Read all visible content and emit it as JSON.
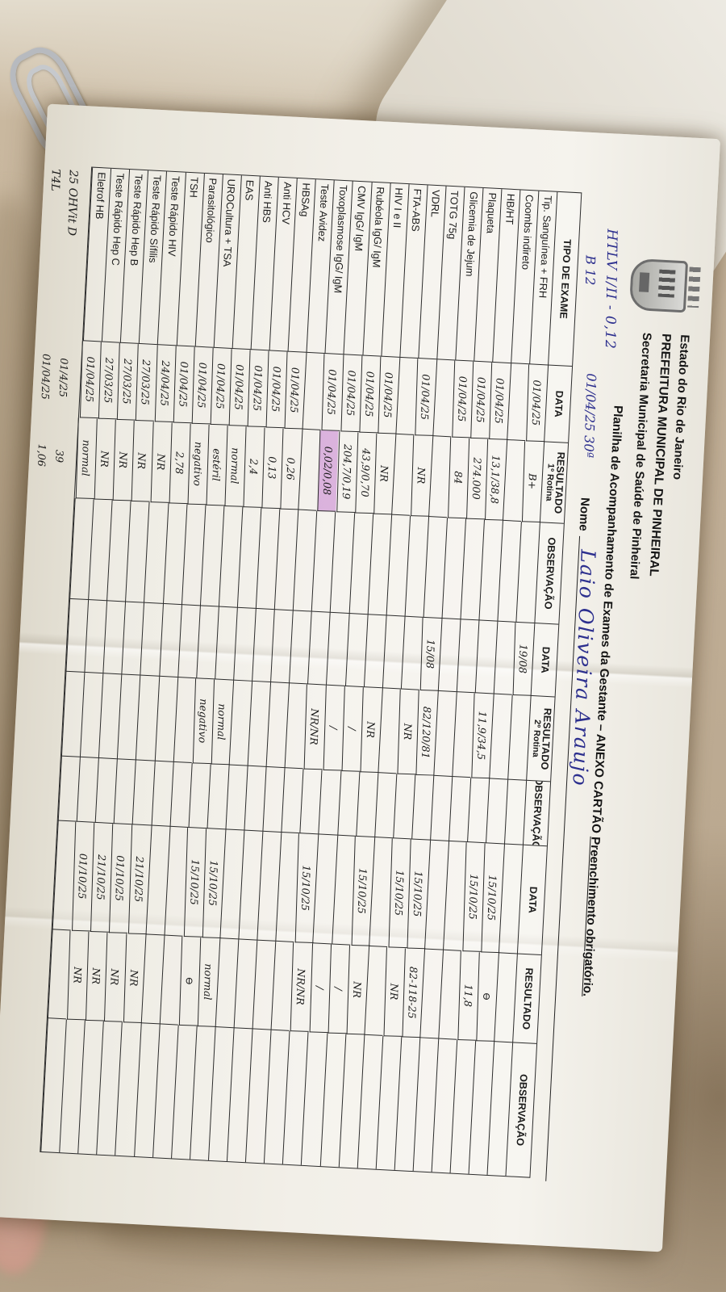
{
  "org": {
    "line1": "Estado do Rio de Janeiro",
    "line2": "PREFEITURA MUNICIPAL DE PINHEIRAL",
    "line3": "Secretaria Municipal de Saúde de Pinheiral"
  },
  "title": {
    "main": "Planilha de Acompanhamento de Exames da Gestante – ANEXO CARTÃO ",
    "underlined": "Preenchimento obrigatório."
  },
  "nome": {
    "label": "Nome",
    "value": "Laio Oliveira Araujo"
  },
  "annotations": {
    "htlv": "HTLV I/II  -  0,12",
    "b12": "B 12",
    "date_week": "01/04/25  30ª"
  },
  "table": {
    "headers": [
      {
        "label": "TIPO DE EXAME",
        "sub": ""
      },
      {
        "label": "DATA",
        "sub": ""
      },
      {
        "label": "RESULTADO",
        "sub": "1º Rotina"
      },
      {
        "label": "OBSERVAÇÃO",
        "sub": ""
      },
      {
        "label": "DATA",
        "sub": ""
      },
      {
        "label": "RESULTADO",
        "sub": "2º Rotina"
      },
      {
        "label": "OBSERVAÇÃO",
        "sub": ""
      },
      {
        "label": "DATA",
        "sub": ""
      },
      {
        "label": "RESULTADO",
        "sub": ""
      },
      {
        "label": "OBSERVAÇÃO",
        "sub": ""
      }
    ],
    "rows": [
      {
        "exam": "Tip. Sanguínea + FRH",
        "cells": [
          "01/04/25",
          "B+",
          "",
          "19/08",
          "",
          "",
          "",
          "",
          ""
        ],
        "hl": -1
      },
      {
        "exam": "Coombs indireto",
        "cells": [
          "",
          "",
          "",
          "",
          "",
          "",
          "15/10/25",
          "⊖",
          ""
        ],
        "hl": -1
      },
      {
        "exam": "HB/HT",
        "cells": [
          "01/04/25",
          "13,1/38,8",
          "",
          "",
          "11,9/34,5",
          "",
          "15/10/25",
          "11,8",
          ""
        ],
        "hl": -1
      },
      {
        "exam": "Plaqueta",
        "cells": [
          "01/04/25",
          "274.000",
          "",
          "",
          "",
          "",
          "",
          "",
          ""
        ],
        "hl": -1
      },
      {
        "exam": "Glicemia de Jejum",
        "cells": [
          "01/04/25",
          "84",
          "",
          "",
          "",
          "",
          "",
          "",
          ""
        ],
        "hl": -1
      },
      {
        "exam": "TOTG 75g",
        "cells": [
          "",
          "",
          "",
          "15/08",
          "82/120/81",
          "",
          "15/10/25",
          "82-118-25",
          ""
        ],
        "hl": -1
      },
      {
        "exam": "VDRL",
        "cells": [
          "01/04/25",
          "NR",
          "",
          "",
          "NR",
          "",
          "15/10/25",
          "NR",
          ""
        ],
        "hl": -1
      },
      {
        "exam": "FTA-ABS",
        "cells": [
          "",
          "",
          "",
          "",
          "",
          "",
          "",
          "",
          ""
        ],
        "hl": -1
      },
      {
        "exam": "HIV I e II",
        "cells": [
          "01/04/25",
          "NR",
          "",
          "",
          "NR",
          "",
          "15/10/25",
          "NR",
          ""
        ],
        "hl": -1
      },
      {
        "exam": "Rubéola IgG/ IgM",
        "cells": [
          "01/04/25",
          "43,9/0,70",
          "",
          "",
          "/",
          "",
          "",
          "/",
          ""
        ],
        "hl": -1
      },
      {
        "exam": "CMV IgG/ IgM",
        "cells": [
          "01/04/25",
          "204,7/0,19",
          "",
          "",
          "/",
          "",
          "",
          "/",
          ""
        ],
        "hl": -1
      },
      {
        "exam": "Toxoplasmose IgG/ IgM",
        "cells": [
          "01/04/25",
          "0,02/0,08",
          "",
          "",
          "NR/NR",
          "",
          "15/10/25",
          "NR/NR",
          ""
        ],
        "hl": 1
      },
      {
        "exam": "Teste Avidez",
        "cells": [
          "",
          "",
          "",
          "",
          "",
          "",
          "",
          "",
          ""
        ],
        "hl": -1
      },
      {
        "exam": "HBSAg",
        "cells": [
          "01/04/25",
          "0,26",
          "",
          "",
          "",
          "",
          "",
          "",
          ""
        ],
        "hl": -1
      },
      {
        "exam": "Anti HCV",
        "cells": [
          "01/04/25",
          "0,13",
          "",
          "",
          "",
          "",
          "",
          "",
          ""
        ],
        "hl": -1
      },
      {
        "exam": "Anti HBS",
        "cells": [
          "01/04/25",
          "2,4",
          "",
          "",
          "",
          "",
          "",
          "",
          ""
        ],
        "hl": -1
      },
      {
        "exam": "EAS",
        "cells": [
          "01/04/25",
          "normal",
          "",
          "",
          "normal",
          "",
          "15/10/25",
          "normal",
          ""
        ],
        "hl": -1
      },
      {
        "exam": "UROCultura + TSA",
        "cells": [
          "01/04/25",
          "estéril",
          "",
          "",
          "negativo",
          "",
          "15/10/25",
          "⊖",
          ""
        ],
        "hl": -1
      },
      {
        "exam": "Parasitológico",
        "cells": [
          "01/04/25",
          "negativo",
          "",
          "",
          "",
          "",
          "",
          "",
          ""
        ],
        "hl": -1
      },
      {
        "exam": "TSH",
        "cells": [
          "01/04/25",
          "2,78",
          "",
          "",
          "",
          "",
          "",
          "",
          ""
        ],
        "hl": -1
      },
      {
        "exam": "Teste Rápido HIV",
        "cells": [
          "24/04/25",
          "NR",
          "",
          "",
          "",
          "",
          "21/10/25",
          "NR",
          ""
        ],
        "hl": -1
      },
      {
        "exam": "Teste Rápido Sífilis",
        "cells": [
          "27/03/25",
          "NR",
          "",
          "",
          "",
          "",
          "01/10/25",
          "NR",
          ""
        ],
        "hl": -1
      },
      {
        "exam": "Teste Rápido Hep B",
        "cells": [
          "27/03/25",
          "NR",
          "",
          "",
          "",
          "",
          "21/10/25",
          "NR",
          ""
        ],
        "hl": -1
      },
      {
        "exam": "Teste Rápido Hep C",
        "cells": [
          "27/03/25",
          "NR",
          "",
          "",
          "",
          "",
          "01/10/25",
          "NR",
          ""
        ],
        "hl": -1
      },
      {
        "exam": "Eletrof HB",
        "cells": [
          "01/04/25",
          "normal",
          "",
          "",
          "",
          "",
          "",
          "",
          ""
        ],
        "hl": -1
      }
    ],
    "extra_rows": [
      {
        "exam": "25 OHVit D",
        "cells": [
          "01/4/25",
          "39",
          "",
          "",
          "",
          "",
          "",
          "",
          ""
        ],
        "hl": -1
      },
      {
        "exam": "T4L",
        "cells": [
          "01/04/25",
          "1,06",
          "",
          "",
          "",
          "",
          "",
          "",
          ""
        ],
        "hl": -1
      }
    ]
  },
  "colors": {
    "ink": "#2c2f8e",
    "highlight": "#c57dd0",
    "paper": "#f2efe8",
    "cloth": "#c2b098"
  }
}
